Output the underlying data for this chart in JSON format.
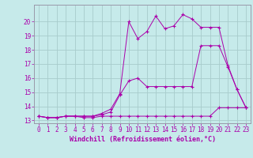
{
  "xlabel": "Windchill (Refroidissement éolien,°C)",
  "background_color": "#c6eaea",
  "grid_color": "#a8cccc",
  "line_color": "#aa00aa",
  "spine_color": "#9999aa",
  "xlim": [
    -0.5,
    23.5
  ],
  "ylim": [
    12.8,
    21.2
  ],
  "yticks": [
    13,
    14,
    15,
    16,
    17,
    18,
    19,
    20
  ],
  "xticks": [
    0,
    1,
    2,
    3,
    4,
    5,
    6,
    7,
    8,
    9,
    10,
    11,
    12,
    13,
    14,
    15,
    16,
    17,
    18,
    19,
    20,
    21,
    22,
    23
  ],
  "series1_x": [
    0,
    1,
    2,
    3,
    4,
    5,
    6,
    7,
    8,
    9,
    10,
    11,
    12,
    13,
    14,
    15,
    16,
    17,
    18,
    19,
    20,
    21,
    22,
    23
  ],
  "series1_y": [
    13.3,
    13.2,
    13.2,
    13.3,
    13.3,
    13.2,
    13.2,
    13.3,
    13.3,
    13.3,
    13.3,
    13.3,
    13.3,
    13.3,
    13.3,
    13.3,
    13.3,
    13.3,
    13.3,
    13.3,
    13.9,
    13.9,
    13.9,
    13.9
  ],
  "series2_x": [
    0,
    1,
    2,
    3,
    4,
    5,
    6,
    7,
    8,
    9,
    10,
    11,
    12,
    13,
    14,
    15,
    16,
    17,
    18,
    19,
    20,
    21,
    22,
    23
  ],
  "series2_y": [
    13.3,
    13.2,
    13.2,
    13.3,
    13.3,
    13.3,
    13.3,
    13.4,
    13.6,
    14.8,
    15.8,
    16.0,
    15.4,
    15.4,
    15.4,
    15.4,
    15.4,
    15.4,
    18.3,
    18.3,
    18.3,
    16.8,
    15.2,
    13.9
  ],
  "series3_x": [
    0,
    1,
    2,
    3,
    4,
    5,
    6,
    7,
    8,
    9,
    10,
    11,
    12,
    13,
    14,
    15,
    16,
    17,
    18,
    19,
    20,
    21,
    22,
    23
  ],
  "series3_y": [
    13.3,
    13.2,
    13.2,
    13.3,
    13.3,
    13.3,
    13.3,
    13.5,
    13.8,
    14.9,
    20.0,
    18.8,
    19.3,
    20.4,
    19.5,
    19.7,
    20.5,
    20.2,
    19.6,
    19.6,
    19.6,
    16.9,
    15.2,
    13.9
  ],
  "tick_fontsize": 5.5,
  "xlabel_fontsize": 6.0
}
